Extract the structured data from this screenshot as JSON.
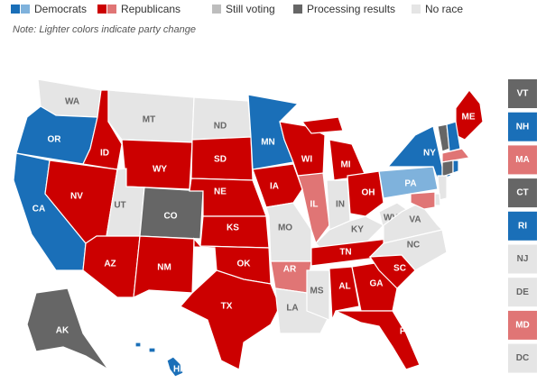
{
  "legend": [
    {
      "label": "Democrats",
      "colors": [
        "#1a6fb8",
        "#7fb2dc"
      ]
    },
    {
      "label": "Republicans",
      "colors": [
        "#cc0000",
        "#e07575"
      ]
    },
    {
      "label": "Still voting",
      "colors": [
        "#bdbdbd"
      ]
    },
    {
      "label": "Processing results",
      "colors": [
        "#666666"
      ]
    },
    {
      "label": "No race",
      "colors": [
        "#e5e5e5"
      ]
    }
  ],
  "note": "Note: Lighter colors indicate party change",
  "states": [
    {
      "abbr": "WA",
      "color": "#e5e5e5"
    },
    {
      "abbr": "OR",
      "color": "#1a6fb8"
    },
    {
      "abbr": "CA",
      "color": "#1a6fb8"
    },
    {
      "abbr": "ID",
      "color": "#cc0000"
    },
    {
      "abbr": "NV",
      "color": "#cc0000"
    },
    {
      "abbr": "MT",
      "color": "#e5e5e5"
    },
    {
      "abbr": "WY",
      "color": "#cc0000"
    },
    {
      "abbr": "UT",
      "color": "#e5e5e5"
    },
    {
      "abbr": "AZ",
      "color": "#cc0000"
    },
    {
      "abbr": "CO",
      "color": "#666666"
    },
    {
      "abbr": "NM",
      "color": "#cc0000"
    },
    {
      "abbr": "ND",
      "color": "#e5e5e5"
    },
    {
      "abbr": "SD",
      "color": "#cc0000"
    },
    {
      "abbr": "NE",
      "color": "#cc0000"
    },
    {
      "abbr": "KS",
      "color": "#cc0000"
    },
    {
      "abbr": "OK",
      "color": "#cc0000"
    },
    {
      "abbr": "TX",
      "color": "#cc0000"
    },
    {
      "abbr": "MN",
      "color": "#1a6fb8"
    },
    {
      "abbr": "IA",
      "color": "#cc0000"
    },
    {
      "abbr": "MO",
      "color": "#e5e5e5"
    },
    {
      "abbr": "AR",
      "color": "#e07575"
    },
    {
      "abbr": "LA",
      "color": "#e5e5e5"
    },
    {
      "abbr": "WI",
      "color": "#cc0000"
    },
    {
      "abbr": "IL",
      "color": "#e07575"
    },
    {
      "abbr": "MS",
      "color": "#e5e5e5"
    },
    {
      "abbr": "MI",
      "color": "#cc0000"
    },
    {
      "abbr": "IN",
      "color": "#e5e5e5"
    },
    {
      "abbr": "KY",
      "color": "#e5e5e5"
    },
    {
      "abbr": "TN",
      "color": "#cc0000"
    },
    {
      "abbr": "AL",
      "color": "#cc0000"
    },
    {
      "abbr": "GA",
      "color": "#cc0000"
    },
    {
      "abbr": "FL",
      "color": "#cc0000"
    },
    {
      "abbr": "OH",
      "color": "#cc0000"
    },
    {
      "abbr": "WV",
      "color": "#e5e5e5"
    },
    {
      "abbr": "VA",
      "color": "#e5e5e5"
    },
    {
      "abbr": "NC",
      "color": "#e5e5e5"
    },
    {
      "abbr": "SC",
      "color": "#cc0000"
    },
    {
      "abbr": "PA",
      "color": "#7fb2dc"
    },
    {
      "abbr": "NY",
      "color": "#1a6fb8"
    },
    {
      "abbr": "ME",
      "color": "#cc0000"
    },
    {
      "abbr": "AK",
      "color": "#666666"
    },
    {
      "abbr": "HI",
      "color": "#1a6fb8"
    },
    {
      "abbr": "VT",
      "color": "#666666"
    },
    {
      "abbr": "NH",
      "color": "#1a6fb8"
    },
    {
      "abbr": "MA",
      "color": "#e07575"
    },
    {
      "abbr": "CT",
      "color": "#666666"
    },
    {
      "abbr": "RI",
      "color": "#1a6fb8"
    },
    {
      "abbr": "NJ",
      "color": "#e5e5e5"
    },
    {
      "abbr": "DE",
      "color": "#e5e5e5"
    },
    {
      "abbr": "MD",
      "color": "#e07575"
    },
    {
      "abbr": "DC",
      "color": "#e5e5e5"
    }
  ]
}
